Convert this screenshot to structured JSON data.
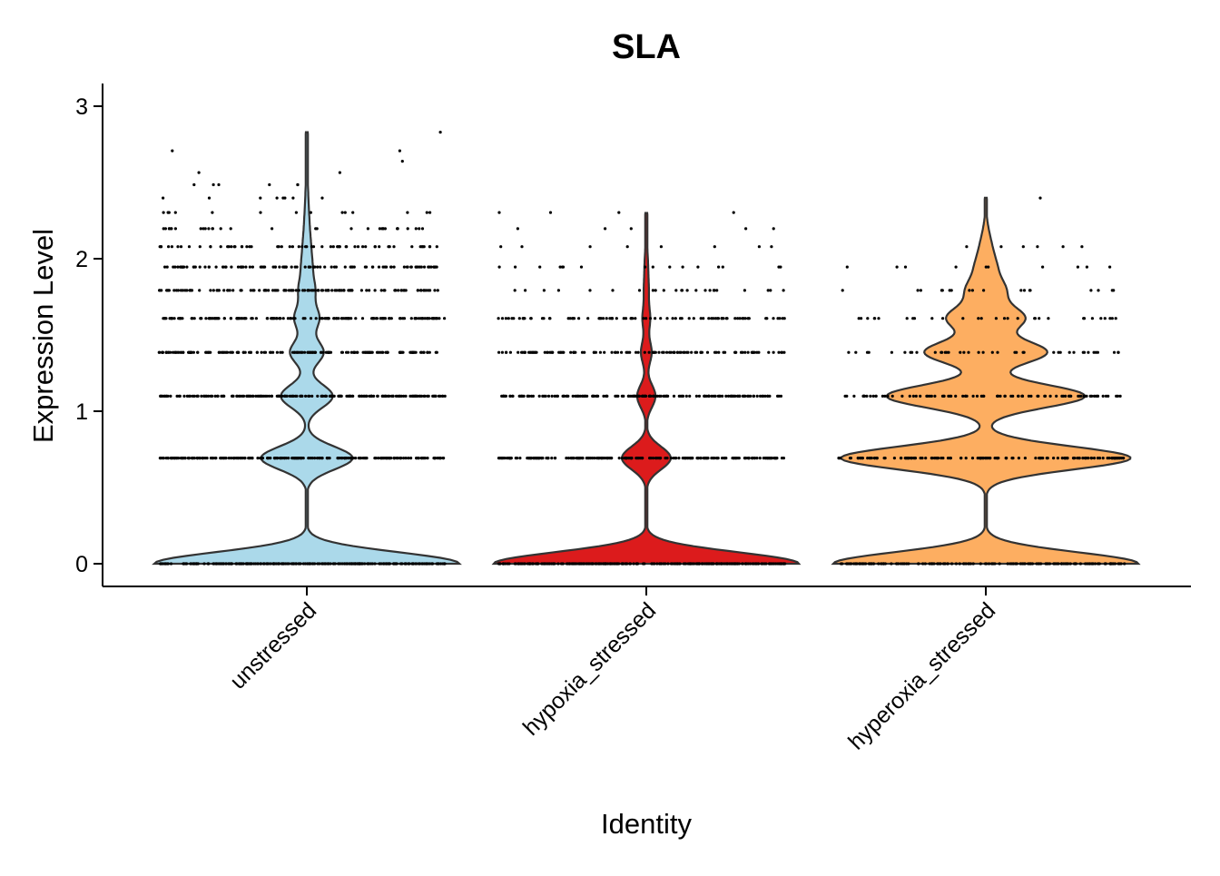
{
  "chart_data": {
    "type": "violin",
    "title": "SLA",
    "xlabel": "Identity",
    "ylabel": "Expression Level",
    "ylim": [
      -0.15,
      3.15
    ],
    "yticks": [
      0,
      1,
      2,
      3
    ],
    "grid": false,
    "legend": "none",
    "groups": [
      {
        "name": "unstressed",
        "color": "#ABD9EA",
        "max": 2.83,
        "levels": [
          {
            "y": 0.0,
            "density": 1.0,
            "dot_count": 260
          },
          {
            "y": 0.693,
            "density": 0.3,
            "dot_count": 200
          },
          {
            "y": 1.099,
            "density": 0.17,
            "dot_count": 180
          },
          {
            "y": 1.386,
            "density": 0.11,
            "dot_count": 160
          },
          {
            "y": 1.609,
            "density": 0.08,
            "dot_count": 140
          },
          {
            "y": 1.792,
            "density": 0.05,
            "dot_count": 120
          },
          {
            "y": 1.946,
            "density": 0.03,
            "dot_count": 100
          },
          {
            "y": 2.079,
            "density": 0.02,
            "dot_count": 60
          },
          {
            "y": 2.197,
            "density": 0.012,
            "dot_count": 32
          },
          {
            "y": 2.303,
            "density": 0.008,
            "dot_count": 14
          },
          {
            "y": 2.398,
            "density": 0.005,
            "dot_count": 8
          },
          {
            "y": 2.485,
            "density": 0.003,
            "dot_count": 6
          },
          {
            "y": 2.565,
            "density": 0.002,
            "dot_count": 2
          },
          {
            "y": 2.639,
            "density": 0.001,
            "dot_count": 1
          },
          {
            "y": 2.708,
            "density": 0.001,
            "dot_count": 2
          },
          {
            "y": 2.83,
            "density": 0.001,
            "dot_count": 1
          }
        ]
      },
      {
        "name": "hypoxia_stressed",
        "color": "#DC1B1C",
        "max": 2.3,
        "levels": [
          {
            "y": 0.0,
            "density": 1.0,
            "dot_count": 260
          },
          {
            "y": 0.693,
            "density": 0.16,
            "dot_count": 200
          },
          {
            "y": 1.099,
            "density": 0.06,
            "dot_count": 160
          },
          {
            "y": 1.386,
            "density": 0.035,
            "dot_count": 110
          },
          {
            "y": 1.609,
            "density": 0.025,
            "dot_count": 80
          },
          {
            "y": 1.792,
            "density": 0.015,
            "dot_count": 24
          },
          {
            "y": 1.946,
            "density": 0.01,
            "dot_count": 16
          },
          {
            "y": 2.079,
            "density": 0.004,
            "dot_count": 8
          },
          {
            "y": 2.197,
            "density": 0.002,
            "dot_count": 5
          },
          {
            "y": 2.303,
            "density": 0.001,
            "dot_count": 4
          }
        ]
      },
      {
        "name": "hyperoxia_stressed",
        "color": "#FDAE61",
        "max": 2.4,
        "levels": [
          {
            "y": 0.0,
            "density": 1.0,
            "dot_count": 150
          },
          {
            "y": 0.693,
            "density": 0.95,
            "dot_count": 140
          },
          {
            "y": 1.099,
            "density": 0.65,
            "dot_count": 90
          },
          {
            "y": 1.386,
            "density": 0.4,
            "dot_count": 40
          },
          {
            "y": 1.609,
            "density": 0.25,
            "dot_count": 30
          },
          {
            "y": 1.792,
            "density": 0.12,
            "dot_count": 18
          },
          {
            "y": 1.946,
            "density": 0.06,
            "dot_count": 10
          },
          {
            "y": 2.079,
            "density": 0.03,
            "dot_count": 6
          },
          {
            "y": 2.197,
            "density": 0.01,
            "dot_count": 0
          },
          {
            "y": 2.398,
            "density": 0.002,
            "dot_count": 1
          }
        ]
      }
    ]
  }
}
